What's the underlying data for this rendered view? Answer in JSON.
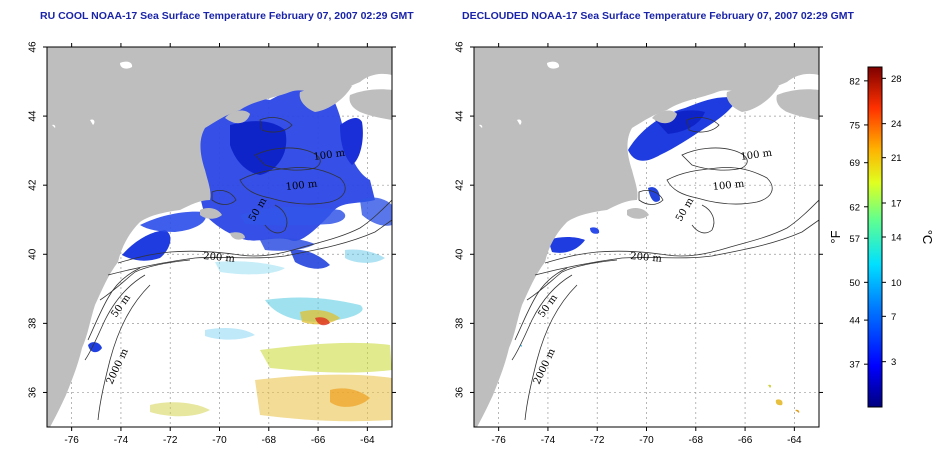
{
  "panels": [
    {
      "id": "left",
      "title": "RU COOL NOAA-17 Sea Surface Temperature February 07, 2007 02:29 GMT",
      "clouds_removed": false
    },
    {
      "id": "right",
      "title": "DECLOUDED NOAA-17 Sea Surface Temperature February 07, 2007 02:29 GMT",
      "clouds_removed": true
    }
  ],
  "axes": {
    "lon_ticks": [
      "-76",
      "-74",
      "-72",
      "-70",
      "-68",
      "-66",
      "-64"
    ],
    "lat_ticks": [
      "46",
      "44",
      "42",
      "40",
      "38",
      "36"
    ],
    "lon_range": [
      -77,
      -63
    ],
    "lat_range": [
      35,
      46
    ],
    "grid": "dotted"
  },
  "contours": {
    "left": [
      "100 m",
      "100 m",
      "50 m",
      "200 m",
      "50 m",
      "2000 m"
    ],
    "right": [
      "100 m",
      "100 m",
      "50 m",
      "200 m",
      "50 m",
      "2000 m"
    ]
  },
  "colorbar": {
    "fahrenheit_ticks": [
      "82",
      "75",
      "69",
      "62",
      "57",
      "50",
      "44",
      "37"
    ],
    "celsius_ticks": [
      "28",
      "24",
      "21",
      "17",
      "14",
      "10",
      "7",
      "3"
    ],
    "fahrenheit_unit": "°F",
    "celsius_unit": "°C",
    "colors": [
      "#00007f",
      "#0000ff",
      "#007fff",
      "#00ffff",
      "#7fff7f",
      "#ffff00",
      "#ff7f00",
      "#ff0000",
      "#7f0000"
    ]
  },
  "colors": {
    "land": "#bebebe",
    "ocean": "#ffffff",
    "title": "#1a24a8",
    "cold_water": "#1e3cdc"
  }
}
